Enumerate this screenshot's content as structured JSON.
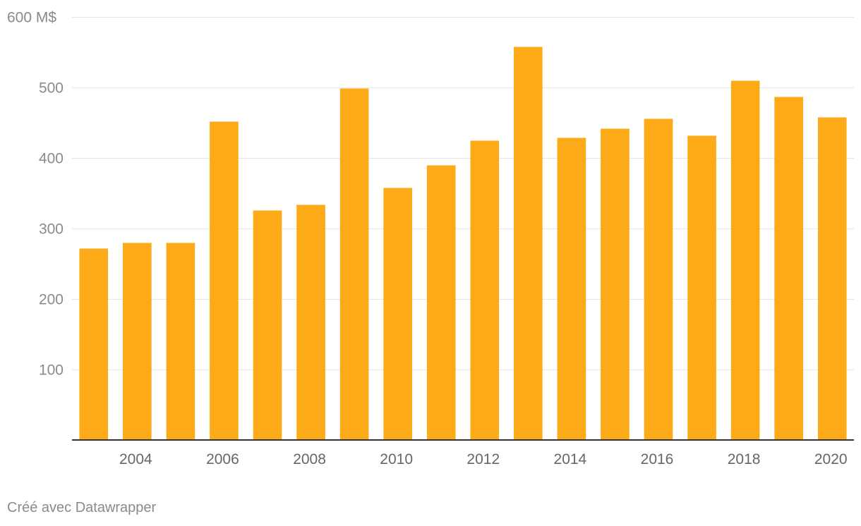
{
  "chart_data": {
    "type": "bar",
    "categories": [
      "2003",
      "2004",
      "2005",
      "2006",
      "2007",
      "2008",
      "2009",
      "2010",
      "2011",
      "2012",
      "2013",
      "2014",
      "2015",
      "2016",
      "2017",
      "2018",
      "2019",
      "2020"
    ],
    "values": [
      271,
      279,
      279,
      451,
      325,
      333,
      498,
      357,
      389,
      424,
      557,
      428,
      441,
      455,
      431,
      509,
      486,
      457
    ],
    "title": "",
    "xlabel": "",
    "ylabel": "",
    "ylim": [
      0,
      600
    ],
    "y_ticks": [
      {
        "value": 100,
        "label": "100"
      },
      {
        "value": 200,
        "label": "200"
      },
      {
        "value": 300,
        "label": "300"
      },
      {
        "value": 400,
        "label": "400"
      },
      {
        "value": 500,
        "label": "500"
      },
      {
        "value": 600,
        "label": "600 M$"
      }
    ],
    "x_tick_labels": [
      "2004",
      "2006",
      "2008",
      "2010",
      "2012",
      "2014",
      "2016",
      "2018",
      "2020"
    ],
    "grid": true,
    "legend": "none",
    "bar_color": "#fcaa17",
    "grid_color": "#e6e6e6",
    "axis_color": "#333333",
    "label_color": "#8a8a8a"
  },
  "credit": "Créé avec Datawrapper"
}
